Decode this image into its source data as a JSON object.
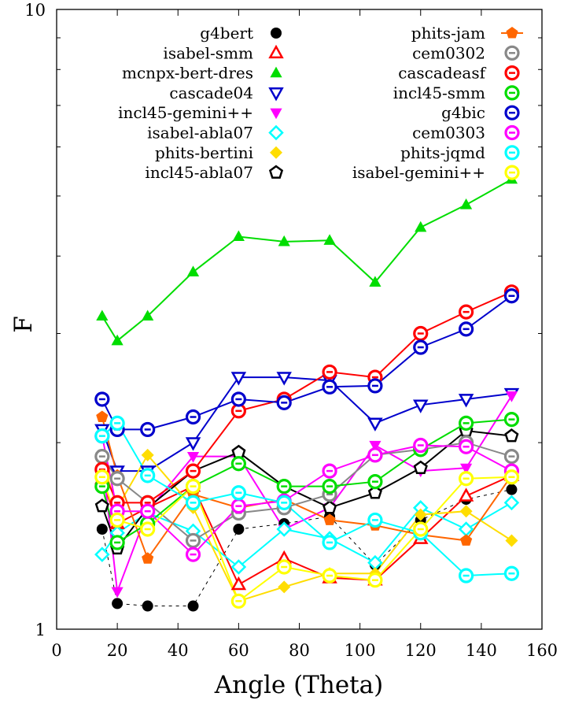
{
  "chart_data": {
    "type": "line",
    "xlabel": "Angle (Theta)",
    "ylabel": "F",
    "xlim": [
      0,
      160
    ],
    "ylim": [
      1,
      10
    ],
    "yscale": "log",
    "xticks": [
      "0",
      "20",
      "40",
      "60",
      "80",
      "100",
      "120",
      "140",
      "160"
    ],
    "yticks": [
      "1",
      "10"
    ],
    "grid": false,
    "legend_position": "top, two columns",
    "x": [
      15,
      20,
      30,
      45,
      60,
      75,
      90,
      105,
      120,
      135,
      150
    ],
    "series": [
      {
        "name": "g4bert",
        "color": "#000000",
        "marker": "filled-circle",
        "dashed": true,
        "values": [
          1.45,
          1.1,
          1.09,
          1.09,
          1.45,
          1.48,
          1.52,
          1.27,
          1.5,
          1.62,
          1.68
        ]
      },
      {
        "name": "isabel-smm",
        "color": "#ff0000",
        "marker": "open-triangle-up",
        "dashed": false,
        "values": [
          1.75,
          1.48,
          1.57,
          1.7,
          1.18,
          1.3,
          1.21,
          1.2,
          1.4,
          1.64,
          1.77
        ]
      },
      {
        "name": "mcnpx-bert-dres",
        "color": "#00dd00",
        "marker": "filled-triangle-up",
        "dashed": false,
        "values": [
          3.2,
          2.92,
          3.2,
          3.77,
          4.3,
          4.22,
          4.24,
          3.63,
          4.45,
          4.84,
          5.32
        ]
      },
      {
        "name": "cascade04",
        "color": "#0000cc",
        "marker": "open-triangle-down",
        "dashed": false,
        "values": [
          2.1,
          1.8,
          1.8,
          2.0,
          2.55,
          2.55,
          2.52,
          2.15,
          2.3,
          2.35,
          2.4
        ]
      },
      {
        "name": "incl45-gemini++",
        "color": "#ff00ff",
        "marker": "filled-triangle-down",
        "dashed": false,
        "values": [
          1.9,
          1.15,
          1.55,
          1.9,
          1.9,
          1.45,
          1.57,
          1.98,
          1.8,
          1.82,
          2.38
        ]
      },
      {
        "name": "isabel-abla07",
        "color": "#00ffff",
        "marker": "open-diamond",
        "dashed": false,
        "values": [
          1.32,
          1.43,
          1.54,
          1.44,
          1.26,
          1.45,
          1.4,
          1.28,
          1.57,
          1.45,
          1.6
        ]
      },
      {
        "name": "phits-bertini",
        "color": "#ffdd00",
        "marker": "filled-diamond",
        "dashed": false,
        "values": [
          1.87,
          1.57,
          1.91,
          1.57,
          1.11,
          1.17,
          1.23,
          1.23,
          1.53,
          1.55,
          1.39
        ]
      },
      {
        "name": "incl45-abla07",
        "color": "#000000",
        "marker": "open-pentagon",
        "dashed": false,
        "values": [
          1.58,
          1.35,
          1.57,
          1.8,
          1.93,
          1.7,
          1.57,
          1.66,
          1.82,
          2.09,
          2.05
        ]
      },
      {
        "name": "phits-jam",
        "color": "#ff6600",
        "marker": "filled-pentagon",
        "dashed": false,
        "values": [
          2.2,
          1.77,
          1.3,
          1.65,
          1.57,
          1.62,
          1.5,
          1.47,
          1.42,
          1.39,
          1.77
        ]
      },
      {
        "name": "cem0302",
        "color": "#888888",
        "marker": "open-circle-bar",
        "dashed": false,
        "values": [
          1.9,
          1.75,
          1.6,
          1.39,
          1.54,
          1.57,
          1.65,
          1.91,
          1.95,
          2.0,
          1.9
        ]
      },
      {
        "name": "cascadeasf",
        "color": "#ff0000",
        "marker": "open-circle-bar",
        "dashed": false,
        "values": [
          1.81,
          1.6,
          1.6,
          1.8,
          2.25,
          2.35,
          2.6,
          2.55,
          3.0,
          3.25,
          3.5
        ]
      },
      {
        "name": "incl45-smm",
        "color": "#00dd00",
        "marker": "open-circle-bar",
        "dashed": false,
        "values": [
          1.7,
          1.38,
          1.48,
          1.7,
          1.85,
          1.7,
          1.7,
          1.73,
          1.95,
          2.15,
          2.18
        ]
      },
      {
        "name": "g4bic",
        "color": "#0000cc",
        "marker": "open-circle-bar",
        "dashed": false,
        "values": [
          2.35,
          2.1,
          2.1,
          2.2,
          2.35,
          2.32,
          2.46,
          2.47,
          2.85,
          3.05,
          3.45
        ]
      },
      {
        "name": "cem0303",
        "color": "#ff00ff",
        "marker": "open-circle-bar",
        "dashed": false,
        "values": [
          2.05,
          1.55,
          1.55,
          1.32,
          1.58,
          1.61,
          1.8,
          1.91,
          1.98,
          1.97,
          1.8
        ]
      },
      {
        "name": "phits-jqmd",
        "color": "#00ffff",
        "marker": "open-circle-bar",
        "dashed": false,
        "values": [
          2.05,
          2.15,
          1.77,
          1.6,
          1.66,
          1.6,
          1.38,
          1.5,
          1.43,
          1.22,
          1.23
        ]
      },
      {
        "name": "isabel-gemini++",
        "color": "#ffff00",
        "marker": "open-circle-bar",
        "dashed": false,
        "values": [
          1.76,
          1.5,
          1.45,
          1.7,
          1.11,
          1.26,
          1.22,
          1.2,
          1.45,
          1.75,
          1.76
        ]
      }
    ]
  }
}
